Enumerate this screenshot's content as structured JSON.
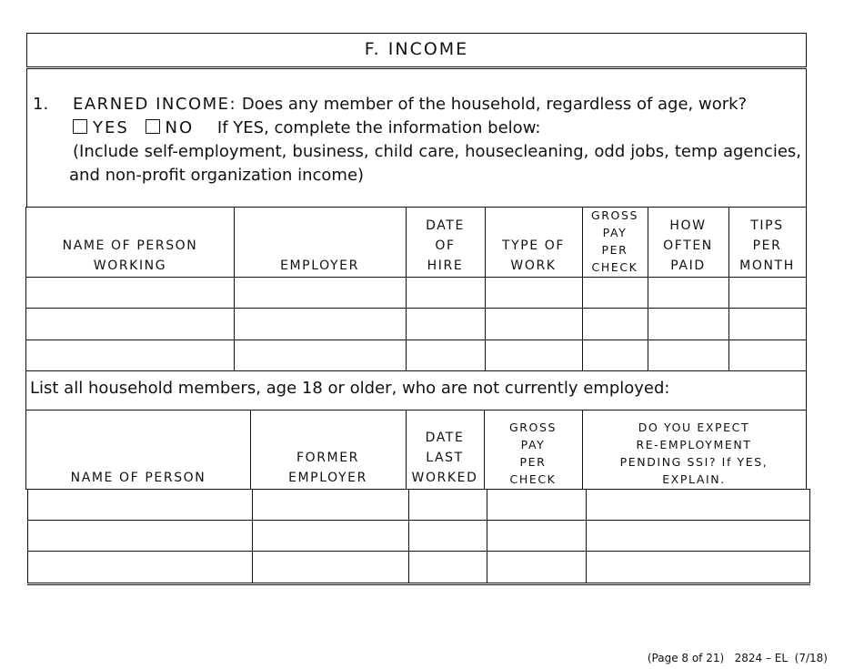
{
  "section_title": "F. INCOME",
  "question": {
    "number": "1.",
    "label": "EARNED INCOME:",
    "text": "Does any member of the household, regardless of age, work?",
    "yes_label": "YES",
    "no_label": "NO",
    "instruction": "If YES, complete the information below:",
    "note": "(Include self-employment, business, child care, housecleaning, odd jobs, temp agencies, and non-profit organization income)"
  },
  "employed_table": {
    "headers": [
      "NAME OF PERSON\nWORKING",
      "EMPLOYER",
      "DATE\nOF\nHIRE",
      "TYPE OF\nWORK",
      "GROSS\nPAY\nPER\nCHECK",
      "HOW\nOFTEN\nPAID",
      "TIPS\nPER\nMONTH"
    ],
    "rows": [
      [
        "",
        "",
        "",
        "",
        "",
        "",
        ""
      ],
      [
        "",
        "",
        "",
        "",
        "",
        "",
        ""
      ],
      [
        "",
        "",
        "",
        "",
        "",
        "",
        ""
      ]
    ]
  },
  "unemployed_prompt": "List all household members, age 18 or older, who are not currently employed:",
  "unemployed_table": {
    "headers": [
      "NAME OF PERSON",
      "FORMER\nEMPLOYER",
      "DATE\nLAST\nWORKED",
      "GROSS\nPAY\nPER\nCHECK",
      "DO YOU EXPECT\nRE-EMPLOYMENT\nPENDING SSI?  If YES,\nEXPLAIN."
    ],
    "rows": [
      [
        "",
        "",
        "",
        "",
        ""
      ],
      [
        "",
        "",
        "",
        "",
        ""
      ],
      [
        "",
        "",
        "",
        "",
        ""
      ]
    ]
  },
  "footer": "(Page 8 of 21)   2824 – EL  (7/18)"
}
